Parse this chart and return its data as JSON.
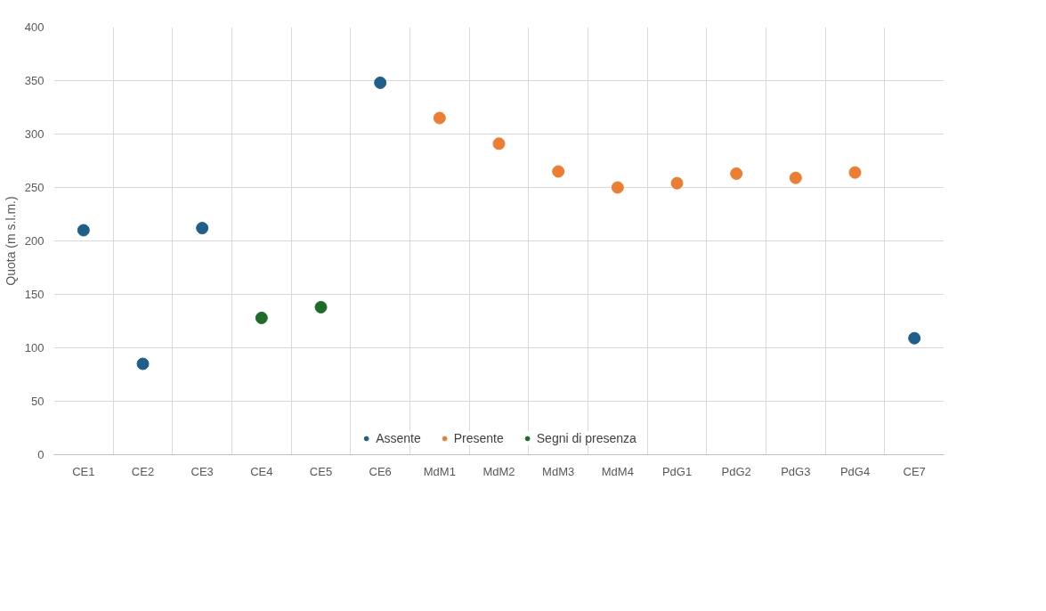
{
  "chart_data": {
    "type": "scatter",
    "ylabel": "Quota (m s.l.m.)",
    "categories": [
      "CE1",
      "CE2",
      "CE3",
      "CE4",
      "CE5",
      "CE6",
      "MdM1",
      "MdM2",
      "MdM3",
      "MdM4",
      "PdG1",
      "PdG2",
      "PdG3",
      "PdG4",
      "CE7"
    ],
    "series": [
      {
        "name": "Assente",
        "color": "#1f5f8b",
        "values": [
          210,
          85,
          212,
          null,
          null,
          348,
          null,
          null,
          null,
          null,
          null,
          null,
          null,
          null,
          109
        ]
      },
      {
        "name": "Presente",
        "color": "#ed7d31",
        "values": [
          null,
          null,
          null,
          null,
          null,
          null,
          315,
          291,
          265,
          250,
          254,
          263,
          259,
          264,
          null
        ]
      },
      {
        "name": "Segni di presenza",
        "color": "#1e6b2a",
        "values": [
          null,
          null,
          null,
          128,
          138,
          null,
          null,
          null,
          null,
          null,
          null,
          null,
          null,
          null,
          null
        ]
      }
    ],
    "ylim": [
      0,
      400
    ],
    "yticks": [
      0,
      50,
      100,
      150,
      200,
      250,
      300,
      350,
      400
    ],
    "grid": true,
    "legend": "bottom",
    "marker": "circle"
  }
}
